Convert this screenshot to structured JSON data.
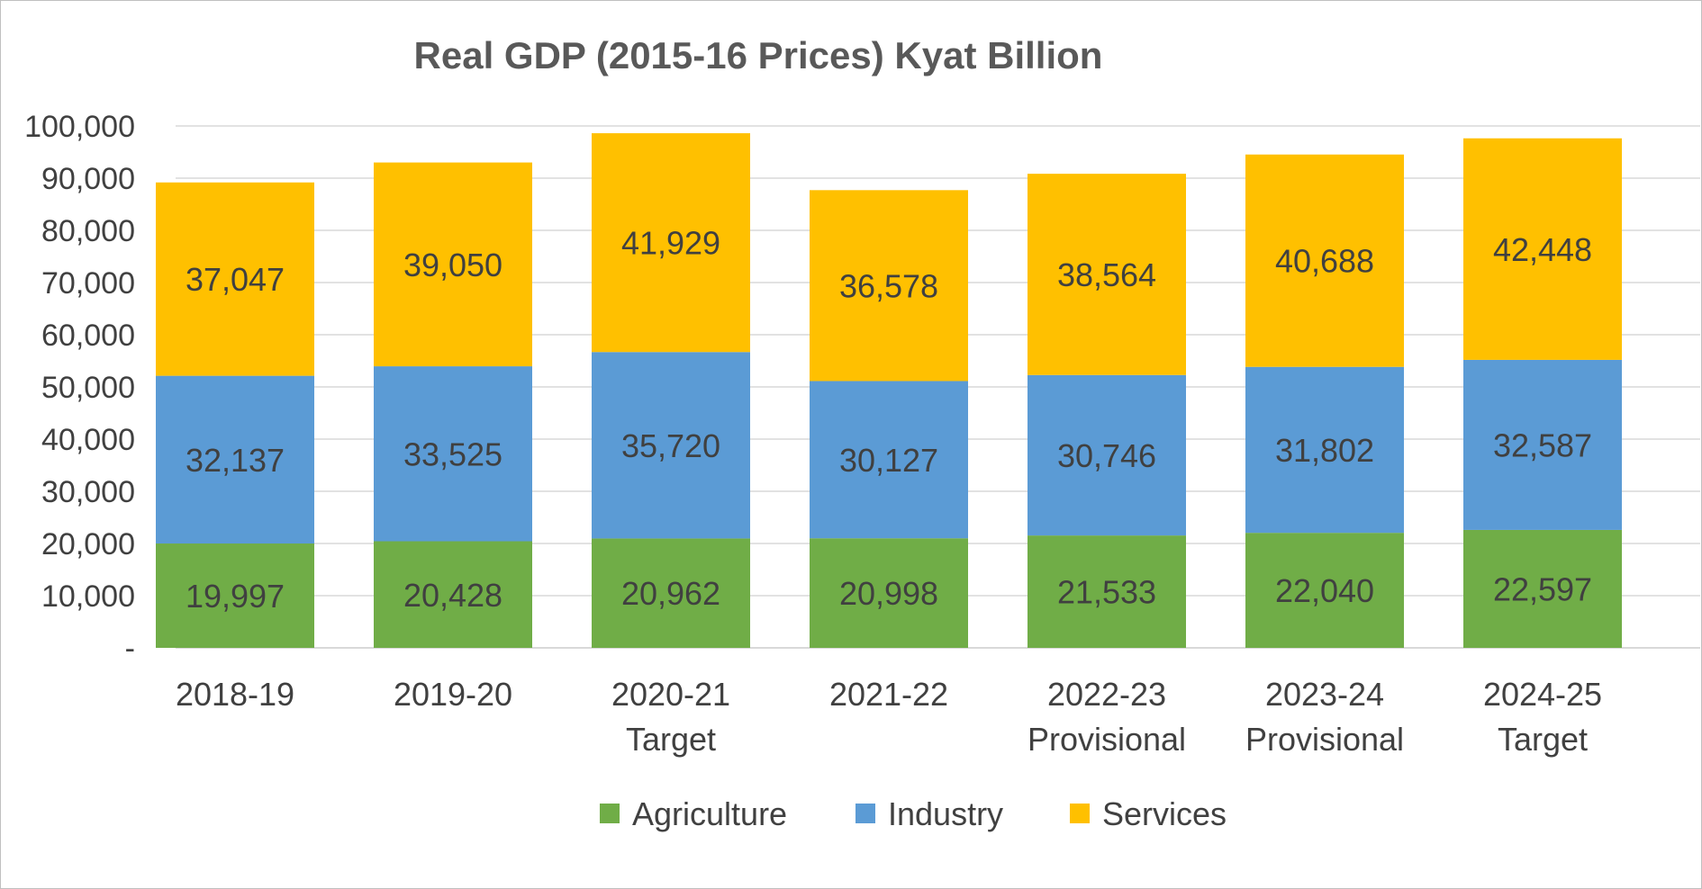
{
  "chart_data": {
    "type": "bar",
    "stacked": true,
    "title": "Real GDP (2015-16 Prices) Kyat Billion",
    "xlabel": "",
    "ylabel": "",
    "categories": [
      [
        "2018-19"
      ],
      [
        "2019-20"
      ],
      [
        "2020-21",
        "Target"
      ],
      [
        "2021-22"
      ],
      [
        "2022-23",
        "Provisional"
      ],
      [
        "2023-24",
        "Provisional"
      ],
      [
        "2024-25",
        "Target"
      ]
    ],
    "series": [
      {
        "name": "Agriculture",
        "color": "#70ad47",
        "values": [
          19997,
          20428,
          20962,
          20998,
          21533,
          22040,
          22597
        ],
        "labels": [
          "19,997",
          "20,428",
          "20,962",
          "20,998",
          "21,533",
          "22,040",
          "22,597"
        ]
      },
      {
        "name": "Industry",
        "color": "#5b9bd5",
        "values": [
          32137,
          33525,
          35720,
          30127,
          30746,
          31802,
          32587
        ],
        "labels": [
          "32,137",
          "33,525",
          "35,720",
          "30,127",
          "30,746",
          "31,802",
          "32,587"
        ]
      },
      {
        "name": "Services",
        "color": "#ffc000",
        "values": [
          37047,
          39050,
          41929,
          36578,
          38564,
          40688,
          42448
        ],
        "labels": [
          "37,047",
          "39,050",
          "41,929",
          "36,578",
          "38,564",
          "40,688",
          "42,448"
        ]
      }
    ],
    "ylim": [
      0,
      100000
    ],
    "yticks": [
      0,
      10000,
      20000,
      30000,
      40000,
      50000,
      60000,
      70000,
      80000,
      90000,
      100000
    ],
    "ytick_labels": [
      "-",
      "10,000",
      "20,000",
      "30,000",
      "40,000",
      "50,000",
      "60,000",
      "70,000",
      "80,000",
      "90,000",
      "100,000"
    ],
    "grid": true,
    "legend_position": "bottom"
  }
}
